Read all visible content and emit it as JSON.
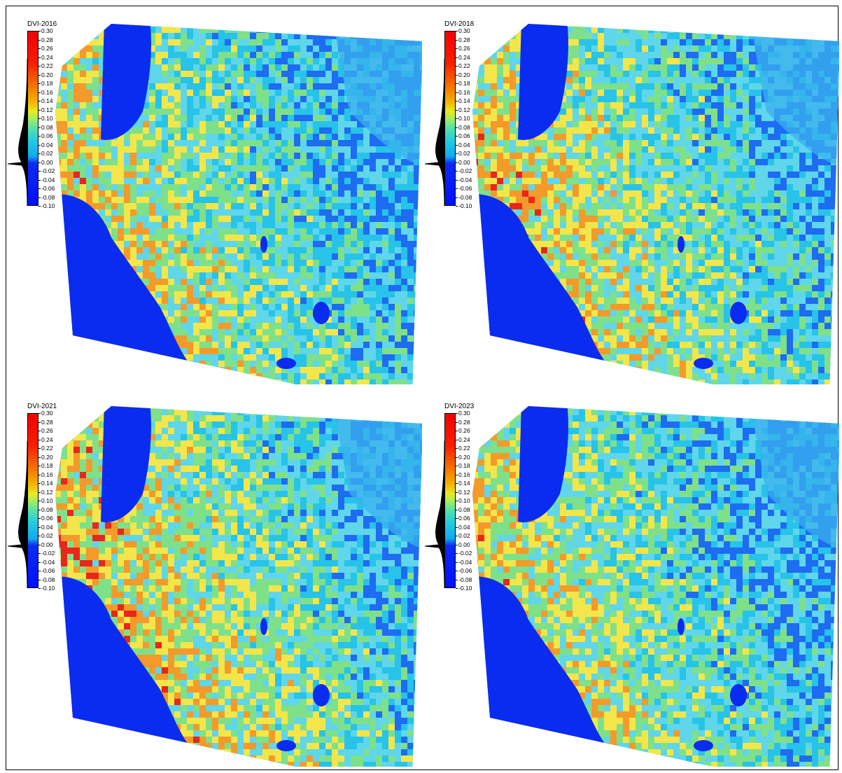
{
  "panels": [
    {
      "title": "DVI-2016"
    },
    {
      "title": "DVI-2018"
    },
    {
      "title": "DVI-2021"
    },
    {
      "title": "DVI-2023"
    }
  ],
  "legend": {
    "min": -0.1,
    "max": 0.3,
    "ticks": [
      "0.30",
      "0.28",
      "0.26",
      "0.24",
      "0.22",
      "0.20",
      "0.18",
      "0.16",
      "0.14",
      "0.12",
      "0.10",
      "0.08",
      "0.06",
      "0.04",
      "0.02",
      "0.00",
      "-0.02",
      "-0.04",
      "-0.06",
      "-0.08",
      "-0.10"
    ]
  },
  "colors": {
    "water": "#0a2cf0",
    "low": "#1d6cf2",
    "cyan": "#27c3e8",
    "light_cyan": "#5fd6ea",
    "green": "#7fe08a",
    "yellow": "#f3e64a",
    "orange": "#f39a2a",
    "red": "#e8261c"
  }
}
